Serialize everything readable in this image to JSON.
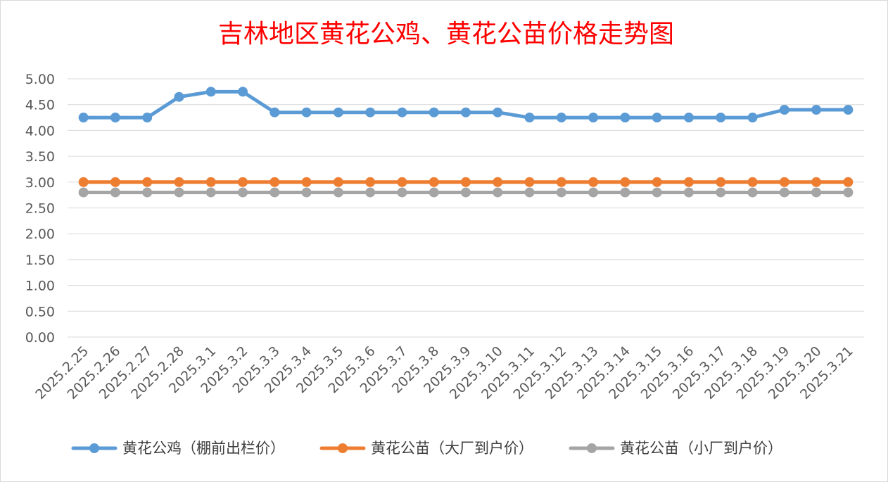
{
  "chart_data": {
    "type": "line",
    "title": "吉林地区黄花公鸡、黄花公苗价格走势图",
    "xlabel": "",
    "ylabel": "",
    "ylim": [
      0,
      5
    ],
    "ytick_step": 0.5,
    "yticks": [
      "0.00",
      "0.50",
      "1.00",
      "1.50",
      "2.00",
      "2.50",
      "3.00",
      "3.50",
      "4.00",
      "4.50",
      "5.00"
    ],
    "grid": true,
    "legend_position": "bottom",
    "categories": [
      "2025.2.25",
      "2025.2.26",
      "2025.2.27",
      "2025.2.28",
      "2025.3.1",
      "2025.3.2",
      "2025.3.3",
      "2025.3.4",
      "2025.3.5",
      "2025.3.6",
      "2025.3.7",
      "2025.3.8",
      "2025.3.9",
      "2025.3.10",
      "2025.3.11",
      "2025.3.12",
      "2025.3.13",
      "2025.3.14",
      "2025.3.15",
      "2025.3.16",
      "2025.3.17",
      "2025.3.18",
      "2025.3.19",
      "2025.3.20",
      "2025.3.21"
    ],
    "series": [
      {
        "name": "黄花公鸡（棚前出栏价）",
        "color": "#5b9bd5",
        "values": [
          4.25,
          4.25,
          4.25,
          4.65,
          4.75,
          4.75,
          4.35,
          4.35,
          4.35,
          4.35,
          4.35,
          4.35,
          4.35,
          4.35,
          4.25,
          4.25,
          4.25,
          4.25,
          4.25,
          4.25,
          4.25,
          4.25,
          4.4,
          4.4,
          4.4
        ]
      },
      {
        "name": "黄花公苗（大厂到户价）",
        "color": "#ed7d31",
        "values": [
          3.0,
          3.0,
          3.0,
          3.0,
          3.0,
          3.0,
          3.0,
          3.0,
          3.0,
          3.0,
          3.0,
          3.0,
          3.0,
          3.0,
          3.0,
          3.0,
          3.0,
          3.0,
          3.0,
          3.0,
          3.0,
          3.0,
          3.0,
          3.0,
          3.0
        ]
      },
      {
        "name": "黄花公苗（小厂到户价）",
        "color": "#a5a5a5",
        "values": [
          2.8,
          2.8,
          2.8,
          2.8,
          2.8,
          2.8,
          2.8,
          2.8,
          2.8,
          2.8,
          2.8,
          2.8,
          2.8,
          2.8,
          2.8,
          2.8,
          2.8,
          2.8,
          2.8,
          2.8,
          2.8,
          2.8,
          2.8,
          2.8,
          2.8
        ]
      }
    ]
  }
}
